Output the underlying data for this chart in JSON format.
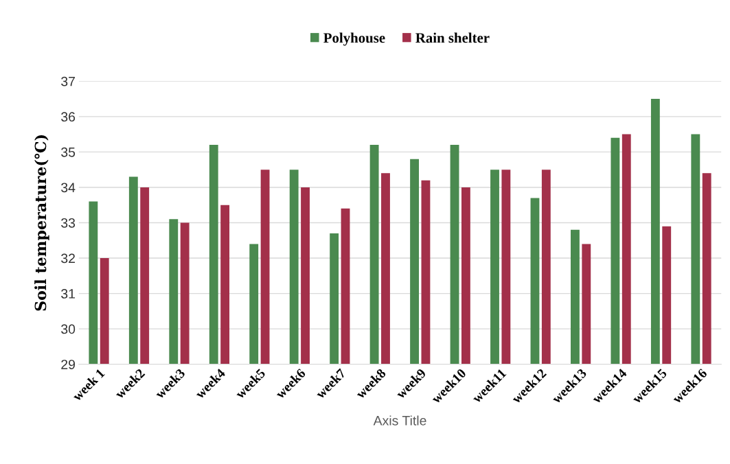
{
  "chart_data": {
    "type": "bar",
    "xlabel": "Axis Title",
    "ylabel": "Soil temperature(℃)",
    "categories": [
      "week 1",
      "week2",
      "week3",
      "week4",
      "week5",
      "week6",
      "week7",
      "week8",
      "week9",
      "week10",
      "week11",
      "week12",
      "week13",
      "week14",
      "week15",
      "week16"
    ],
    "series": [
      {
        "name": "Polyhouse",
        "color": "#4a8a4f",
        "values": [
          33.6,
          34.3,
          33.1,
          35.2,
          32.4,
          34.5,
          32.7,
          35.2,
          34.8,
          35.2,
          34.5,
          33.7,
          32.8,
          35.4,
          36.5,
          35.5
        ]
      },
      {
        "name": "Rain shelter",
        "color": "#a3304a",
        "values": [
          32.0,
          34.0,
          33.0,
          33.5,
          34.5,
          34.0,
          33.4,
          34.4,
          34.2,
          34.0,
          34.5,
          34.5,
          32.4,
          35.5,
          32.9,
          34.4
        ]
      }
    ],
    "ylim": [
      29,
      37
    ],
    "yticks": [
      29,
      30,
      31,
      32,
      33,
      34,
      35,
      36,
      37
    ],
    "grid": "y",
    "legend": "top"
  }
}
